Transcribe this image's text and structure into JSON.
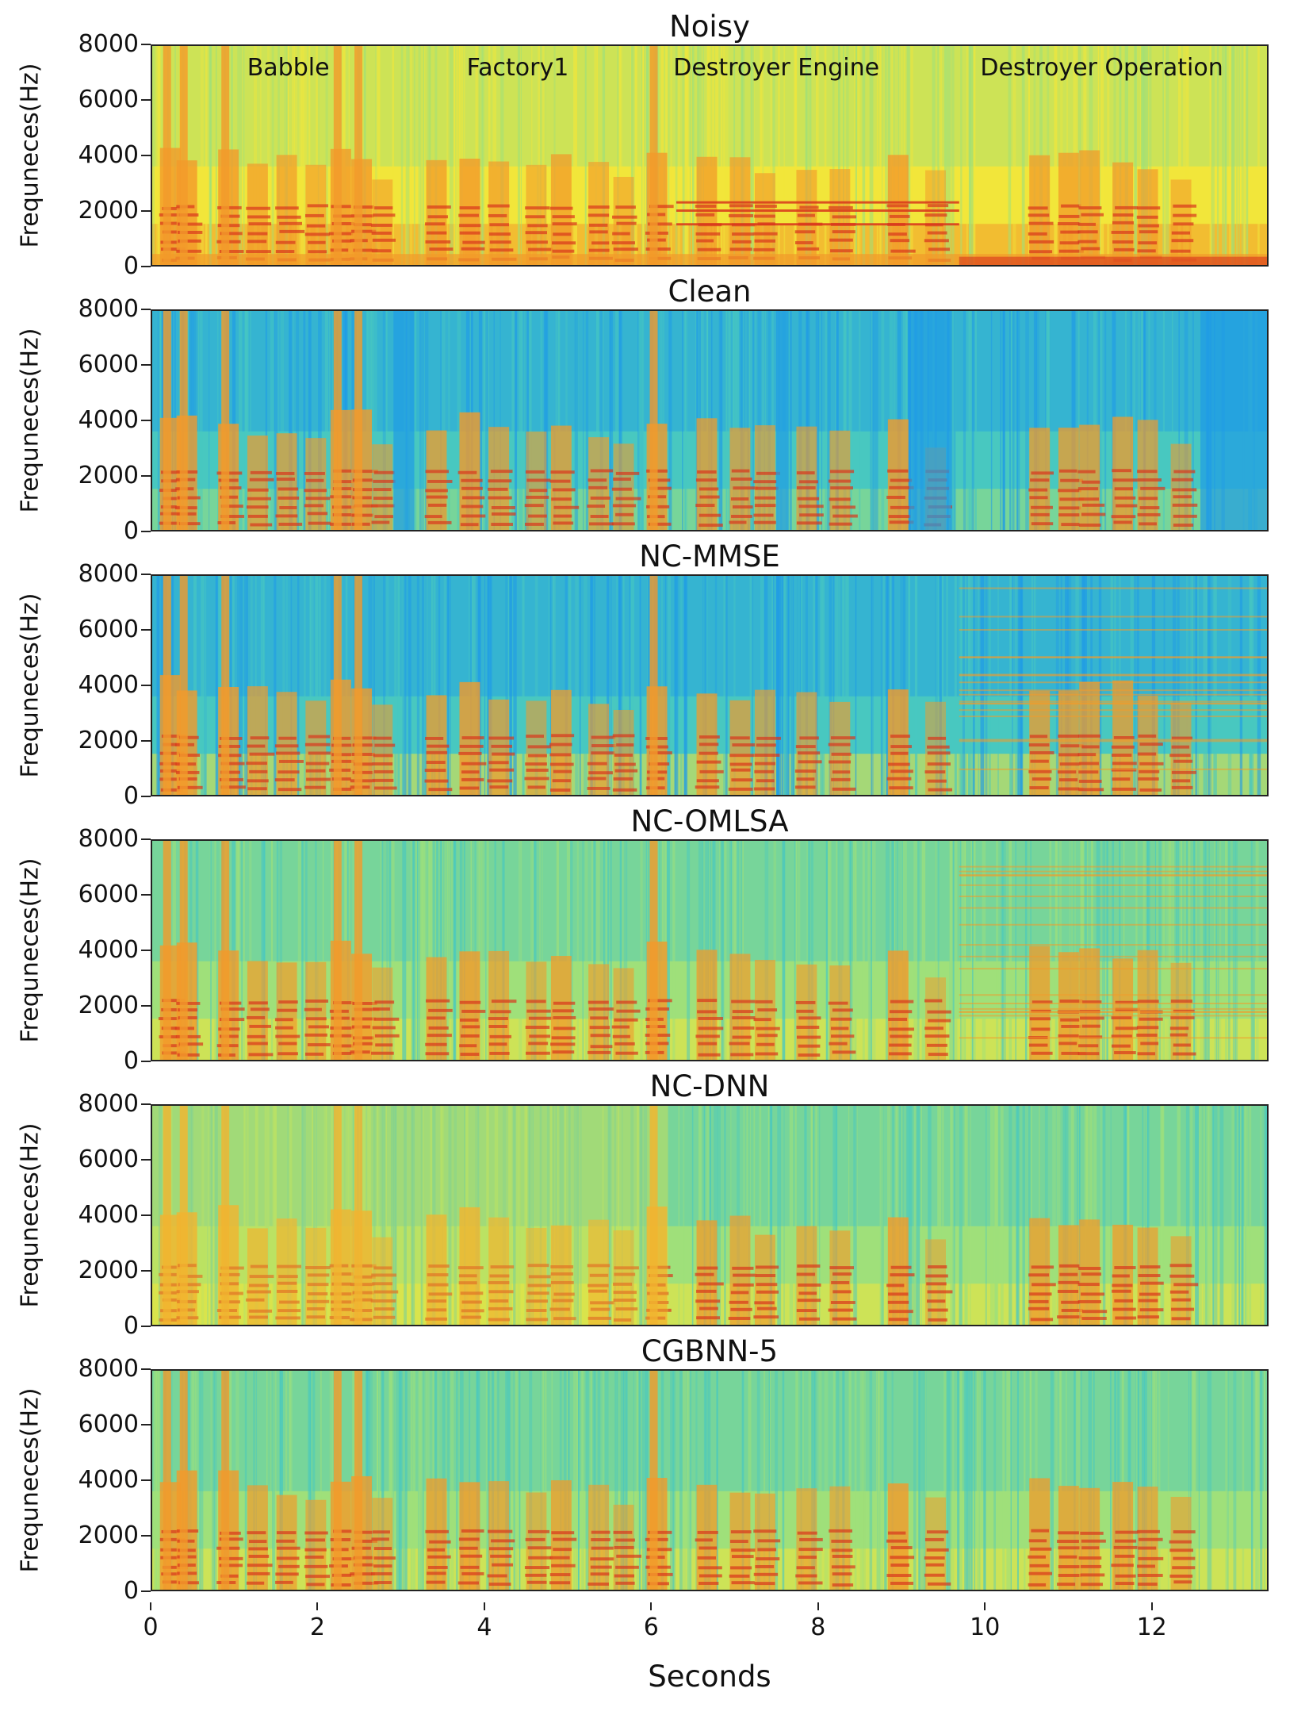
{
  "chart_data": {
    "type": "heatmap",
    "description_colormap": "jet",
    "colors": {
      "low": "#1f9be6",
      "mid_low": "#48c8c0",
      "mid": "#9fe07a",
      "mid_high": "#f2e63a",
      "high": "#f29a2a",
      "peak": "#d8361c"
    },
    "xlabel": "Seconds",
    "ylabel": "Frequneces(Hz)",
    "xlim": [
      0,
      13.4
    ],
    "ylim": [
      0,
      8000
    ],
    "xticks": [
      "0",
      "2",
      "4",
      "6",
      "8",
      "10",
      "12"
    ],
    "yticks": [
      "0",
      "2000",
      "4000",
      "6000",
      "8000"
    ],
    "noise_segments": [
      {
        "label": "Babble",
        "x": 1.65
      },
      {
        "label": "Factory1",
        "x": 4.4
      },
      {
        "label": "Destroyer Engine",
        "x": 7.5
      },
      {
        "label": "Destroyer Operation",
        "x": 11.4
      }
    ],
    "panels": [
      {
        "title": "Noisy",
        "background": "noisy"
      },
      {
        "title": "Clean",
        "background": "clean"
      },
      {
        "title": "NC-MMSE",
        "background": "mmse"
      },
      {
        "title": "NC-OMLSA",
        "background": "omlsa"
      },
      {
        "title": "NC-DNN",
        "background": "dnn"
      },
      {
        "title": "CGBNN-5",
        "background": "cgbnn"
      }
    ]
  }
}
